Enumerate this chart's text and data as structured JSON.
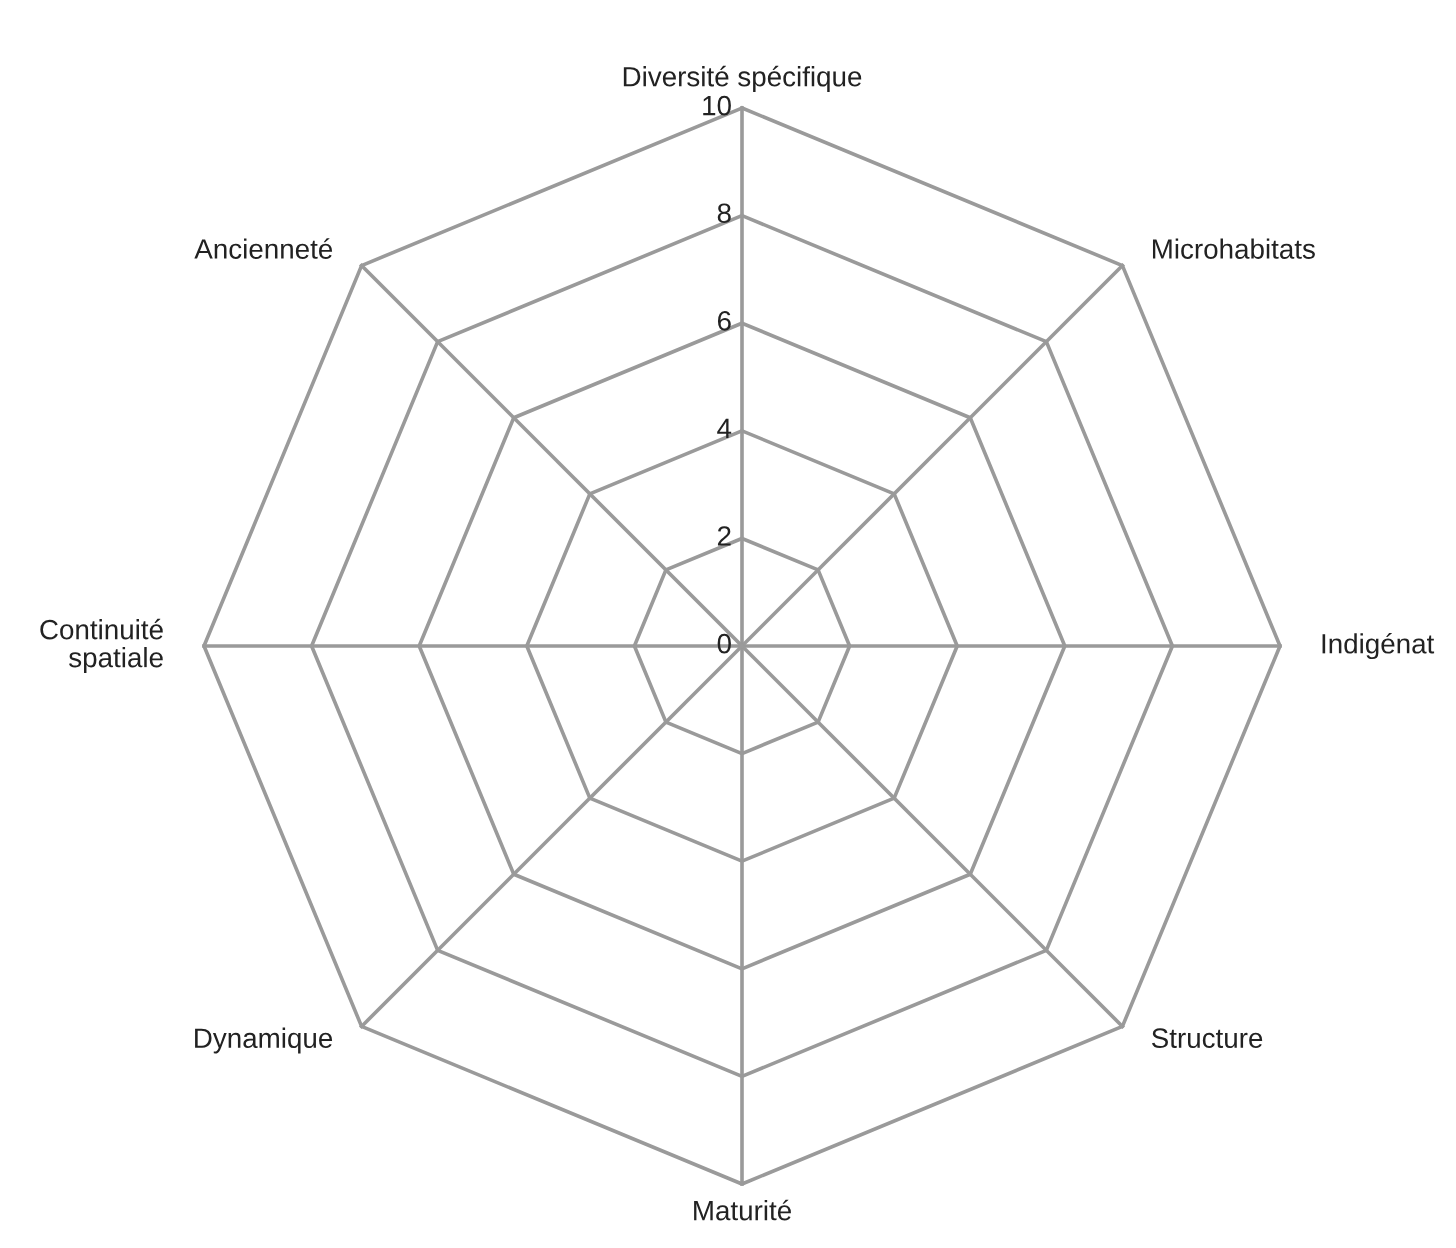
{
  "chart_data": {
    "type": "radar",
    "categories": [
      "Diversité spécifique",
      "Microhabitats",
      "Indigénat",
      "Structure",
      "Maturité",
      "Dynamique",
      "Continuité\nspatiale",
      "Ancienneté"
    ],
    "ylim": [
      0,
      10
    ],
    "yticks": [
      0,
      2,
      4,
      6,
      8,
      10
    ],
    "grid": true
  }
}
